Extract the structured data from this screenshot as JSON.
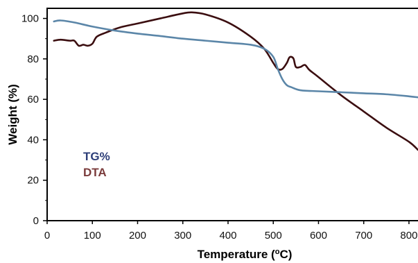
{
  "chart_data": {
    "type": "line",
    "xlabel_prefix": "Temperature (",
    "xlabel_sup": "o",
    "xlabel_suffix": "C)",
    "ylabel": "Weight (%)",
    "xlim": [
      0,
      820
    ],
    "ylim": [
      0,
      105
    ],
    "x_ticks": [
      0,
      100,
      200,
      300,
      400,
      500,
      600,
      700,
      800
    ],
    "x_tick_labels": [
      "0",
      "100",
      "200",
      "300",
      "400",
      "500",
      "600",
      "700",
      "800"
    ],
    "y_ticks": [
      0,
      20,
      40,
      60,
      80,
      100
    ],
    "y_tick_labels": [
      "0",
      "20",
      "40",
      "60",
      "80",
      "100"
    ],
    "legend": {
      "placement": "lower-left"
    },
    "series": [
      {
        "name": "TG%",
        "color": "#5b86a8",
        "legend_color": "#2d3e78",
        "x": [
          15,
          30,
          60,
          100,
          150,
          200,
          250,
          300,
          350,
          400,
          450,
          480,
          500,
          510,
          520,
          530,
          540,
          560,
          600,
          650,
          700,
          750,
          800,
          820
        ],
        "y": [
          98.5,
          99,
          98,
          96,
          94,
          92.5,
          91.3,
          90,
          89,
          88,
          87,
          85,
          81,
          75,
          70,
          67,
          66,
          64.5,
          64,
          63.5,
          63,
          62.5,
          61.5,
          61
        ]
      },
      {
        "name": "DTA",
        "color": "#3b0e10",
        "legend_color": "#7a3b3b",
        "x": [
          15,
          30,
          50,
          60,
          70,
          80,
          90,
          100,
          110,
          130,
          160,
          200,
          250,
          300,
          320,
          350,
          400,
          450,
          480,
          500,
          510,
          520,
          530,
          535,
          540,
          545,
          550,
          560,
          570,
          580,
          600,
          650,
          700,
          750,
          800,
          820
        ],
        "y": [
          89,
          89.5,
          89,
          89,
          86.5,
          87,
          86.5,
          87.5,
          91,
          93,
          95.5,
          97.5,
          100,
          102.5,
          103,
          102,
          98,
          91,
          85,
          78,
          75,
          75,
          78,
          80.5,
          81,
          80,
          76,
          76,
          77,
          74.5,
          71,
          62,
          54,
          46,
          39,
          35
        ]
      }
    ]
  }
}
